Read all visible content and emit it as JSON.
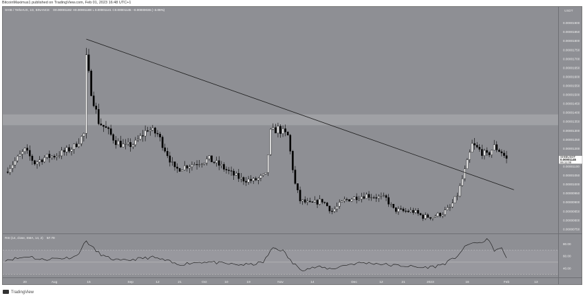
{
  "header": {
    "published": "BitcoinMaximus1 published on TradingView.com, Feb 01, 2023 16:48 UTC+1",
    "symbol_line": "SHIB / TetherUS, 1D, BINANCE",
    "o_label": "O",
    "o_value": "0.00001182",
    "h_label": "H",
    "h_value": "0.00001188",
    "l_label": "L",
    "l_value": "0.00001141",
    "c_label": "C",
    "c_value": "0.00001145",
    "change": "−0.00000036 (−3.05%)"
  },
  "footer": {
    "brand": "TradingView"
  },
  "colors": {
    "background": "#8e8f94",
    "up": "#ffffff",
    "down": "#000000",
    "resistance_zone": "#a3a4a8",
    "price_tag": "#ffffff"
  },
  "chart_data": {
    "type": "candlestick",
    "currency_label": "USDT",
    "price_axis": {
      "range": [
        7.3e-06,
        1.99e-05
      ],
      "ticks": [
        "0.00001900",
        "0.00001850",
        "0.00001800",
        "0.00001750",
        "0.00001700",
        "0.00001650",
        "0.00001600",
        "0.00001550",
        "0.00001500",
        "0.00001450",
        "0.00001400",
        "0.00001350",
        "0.00001300",
        "0.00001250",
        "0.00001200",
        "0.00001150",
        "0.00001100",
        "0.00001050",
        "0.00001000",
        "0.00000950",
        "0.00000900",
        "0.00000850",
        "0.00000800",
        "0.00000750"
      ]
    },
    "time_axis_ticks": [
      {
        "label": "20",
        "date": "2022-07-20"
      },
      {
        "label": "Aug",
        "date": "2022-08-01"
      },
      {
        "label": "15",
        "date": "2022-08-15"
      },
      {
        "label": "Sep",
        "date": "2022-09-01"
      },
      {
        "label": "12",
        "date": "2022-09-12"
      },
      {
        "label": "21",
        "date": "2022-09-21"
      },
      {
        "label": "Oct",
        "date": "2022-10-01"
      },
      {
        "label": "10",
        "date": "2022-10-10"
      },
      {
        "label": "19",
        "date": "2022-10-19"
      },
      {
        "label": "Nov",
        "date": "2022-11-01"
      },
      {
        "label": "14",
        "date": "2022-11-14"
      },
      {
        "label": "Dec",
        "date": "2022-12-01"
      },
      {
        "label": "12",
        "date": "2022-12-12"
      },
      {
        "label": "21",
        "date": "2022-12-21"
      },
      {
        "label": "2023",
        "date": "2023-01-01"
      },
      {
        "label": "16",
        "date": "2023-01-16"
      },
      {
        "label": "Feb",
        "date": "2023-02-01"
      },
      {
        "label": "13",
        "date": "2023-02-13"
      }
    ],
    "x_range": [
      "2022-07-11",
      "2023-02-22"
    ],
    "anchors": [
      [
        "2022-07-12",
        1.07e-05
      ],
      [
        "2022-07-16",
        1.13e-05
      ],
      [
        "2022-07-20",
        1.19e-05
      ],
      [
        "2022-07-24",
        1.12e-05
      ],
      [
        "2022-07-28",
        1.15e-05
      ],
      [
        "2022-08-01",
        1.16e-05
      ],
      [
        "2022-08-05",
        1.18e-05
      ],
      [
        "2022-08-09",
        1.21e-05
      ],
      [
        "2022-08-13",
        1.28e-05
      ],
      [
        "2022-08-14",
        1.7e-05
      ],
      [
        "2022-08-16",
        1.52e-05
      ],
      [
        "2022-08-19",
        1.35e-05
      ],
      [
        "2022-08-22",
        1.31e-05
      ],
      [
        "2022-08-26",
        1.24e-05
      ],
      [
        "2022-08-30",
        1.21e-05
      ],
      [
        "2022-09-03",
        1.23e-05
      ],
      [
        "2022-09-08",
        1.31e-05
      ],
      [
        "2022-09-12",
        1.28e-05
      ],
      [
        "2022-09-16",
        1.17e-05
      ],
      [
        "2022-09-19",
        1.08e-05
      ],
      [
        "2022-09-23",
        1.1e-05
      ],
      [
        "2022-09-28",
        1.12e-05
      ],
      [
        "2022-10-03",
        1.14e-05
      ],
      [
        "2022-10-08",
        1.1e-05
      ],
      [
        "2022-10-12",
        1.06e-05
      ],
      [
        "2022-10-16",
        1.03e-05
      ],
      [
        "2022-10-21",
        1.02e-05
      ],
      [
        "2022-10-26",
        1.05e-05
      ],
      [
        "2022-10-28",
        1.29e-05
      ],
      [
        "2022-10-31",
        1.31e-05
      ],
      [
        "2022-11-04",
        1.27e-05
      ],
      [
        "2022-11-07",
        1e-05
      ],
      [
        "2022-11-09",
        9.1e-06
      ],
      [
        "2022-11-13",
        8.9e-06
      ],
      [
        "2022-11-18",
        9.1e-06
      ],
      [
        "2022-11-22",
        8.5e-06
      ],
      [
        "2022-11-27",
        9.1e-06
      ],
      [
        "2022-12-02",
        9.3e-06
      ],
      [
        "2022-12-06",
        9.4e-06
      ],
      [
        "2022-12-10",
        9.3e-06
      ],
      [
        "2022-12-14",
        9.2e-06
      ],
      [
        "2022-12-17",
        8.6e-06
      ],
      [
        "2022-12-21",
        8.5e-06
      ],
      [
        "2022-12-25",
        8.5e-06
      ],
      [
        "2022-12-29",
        8.2e-06
      ],
      [
        "2023-01-02",
        8.2e-06
      ],
      [
        "2023-01-06",
        8.4e-06
      ],
      [
        "2023-01-09",
        8.7e-06
      ],
      [
        "2023-01-12",
        9.4e-06
      ],
      [
        "2023-01-14",
        1.03e-05
      ],
      [
        "2023-01-16",
        1.12e-05
      ],
      [
        "2023-01-18",
        1.22e-05
      ],
      [
        "2023-01-21",
        1.19e-05
      ],
      [
        "2023-01-24",
        1.16e-05
      ],
      [
        "2023-01-27",
        1.21e-05
      ],
      [
        "2023-01-30",
        1.18e-05
      ],
      [
        "2023-02-01",
        1.14e-05
      ]
    ],
    "last_price_label": "SHIBUSDT",
    "last_price": "0.00001145",
    "countdown": "06:11:08",
    "trendline": {
      "from": [
        "2022-08-14",
        1.81e-05
      ],
      "to": [
        "2023-02-04",
        9.7e-06
      ]
    },
    "resistance_zone": [
      1.33e-05,
      1.39e-05
    ],
    "indicator": {
      "label": "RSI (14, close, SMA, 14, 2)",
      "value": "57.70",
      "range": [
        25,
        95
      ],
      "ticks": [
        "80.00",
        "60.00",
        "40.00"
      ],
      "levels": [
        70,
        50,
        30
      ],
      "anchors": [
        [
          "2022-07-12",
          54
        ],
        [
          "2022-07-18",
          57
        ],
        [
          "2022-07-22",
          60
        ],
        [
          "2022-07-26",
          54
        ],
        [
          "2022-08-01",
          56
        ],
        [
          "2022-08-06",
          57
        ],
        [
          "2022-08-10",
          60
        ],
        [
          "2022-08-14",
          85
        ],
        [
          "2022-08-18",
          68
        ],
        [
          "2022-08-22",
          58
        ],
        [
          "2022-08-28",
          52
        ],
        [
          "2022-09-05",
          56
        ],
        [
          "2022-09-10",
          58
        ],
        [
          "2022-09-16",
          52
        ],
        [
          "2022-09-20",
          46
        ],
        [
          "2022-09-26",
          49
        ],
        [
          "2022-10-02",
          51
        ],
        [
          "2022-10-08",
          48
        ],
        [
          "2022-10-14",
          46
        ],
        [
          "2022-10-20",
          46
        ],
        [
          "2022-10-25",
          50
        ],
        [
          "2022-10-29",
          74
        ],
        [
          "2022-11-02",
          69
        ],
        [
          "2022-11-06",
          48
        ],
        [
          "2022-11-10",
          38
        ],
        [
          "2022-11-16",
          42
        ],
        [
          "2022-11-22",
          39
        ],
        [
          "2022-11-28",
          46
        ],
        [
          "2022-12-04",
          49
        ],
        [
          "2022-12-10",
          48
        ],
        [
          "2022-12-16",
          45
        ],
        [
          "2022-12-22",
          44
        ],
        [
          "2022-12-28",
          41
        ],
        [
          "2023-01-03",
          43
        ],
        [
          "2023-01-07",
          48
        ],
        [
          "2023-01-11",
          57
        ],
        [
          "2023-01-15",
          74
        ],
        [
          "2023-01-18",
          83
        ],
        [
          "2023-01-21",
          80
        ],
        [
          "2023-01-24",
          89
        ],
        [
          "2023-01-27",
          70
        ],
        [
          "2023-01-30",
          72
        ],
        [
          "2023-02-01",
          57.7
        ]
      ]
    }
  }
}
